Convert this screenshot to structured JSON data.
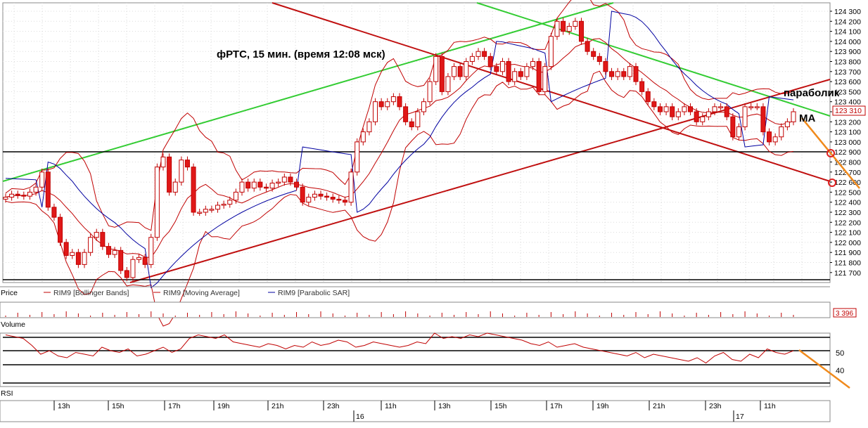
{
  "chart_data": {
    "type": "candlestick",
    "title": "фРТС,  15 мин.  (время 12:08 мск)",
    "price_axis": {
      "ylim": [
        121600,
        124350
      ],
      "ticks": [
        "124 300",
        "124 200",
        "124 100",
        "124 000",
        "123 900",
        "123 800",
        "123 700",
        "123 600",
        "123 500",
        "123 400",
        "123 300",
        "123 200",
        "123 100",
        "123 000",
        "122 900",
        "122 800",
        "122 700",
        "122 600",
        "122 500",
        "122 400",
        "122 300",
        "122 200",
        "122 100",
        "122 000",
        "121 900",
        "121 800",
        "121 700"
      ],
      "last_price_label": "123 310"
    },
    "candles_closes": [
      122450,
      122480,
      122470,
      122460,
      122500,
      122550,
      122700,
      122350,
      122250,
      122000,
      121870,
      121900,
      121780,
      121900,
      122050,
      122100,
      121960,
      121880,
      121920,
      121720,
      121650,
      121830,
      121850,
      121780,
      122050,
      122750,
      122850,
      122500,
      122600,
      122820,
      122750,
      122300,
      122300,
      122330,
      122330,
      122370,
      122380,
      122420,
      122500,
      122600,
      122540,
      122600,
      122550,
      122540,
      122590,
      122600,
      122650,
      122600,
      122550,
      122400,
      122450,
      122480,
      122460,
      122450,
      122430,
      122420,
      122400,
      122700,
      123000,
      123100,
      123200,
      123400,
      123350,
      123400,
      123450,
      123350,
      123200,
      123150,
      123300,
      123400,
      123600,
      123850,
      123500,
      123650,
      123750,
      123650,
      123800,
      123850,
      123900,
      123850,
      123750,
      123700,
      123800,
      123600,
      123700,
      123650,
      123750,
      123800,
      123500,
      123750,
      124050,
      124200,
      124100,
      124150,
      124200,
      124000,
      123900,
      123850,
      123800,
      123700,
      123650,
      123700,
      123650,
      123750,
      123600,
      123500,
      123400,
      123350,
      123300,
      123350,
      123250,
      123300,
      123350,
      123300,
      123200,
      123250,
      123300,
      123350,
      123350,
      123250,
      123050,
      123150,
      123350,
      123350,
      123350,
      123100,
      123000,
      123050,
      123150,
      123200,
      123300
    ],
    "indicators": [
      {
        "name": "RIM9 [Bollinger Bands]",
        "color": "#c00000"
      },
      {
        "name": "RIM9 [Moving Average]",
        "color": "#c00000"
      },
      {
        "name": "RIM9 [Parabolic SAR]",
        "color": "#0000a0"
      }
    ],
    "panel_labels": {
      "price": "Price",
      "volume": "Volume",
      "rsi": "RSI"
    },
    "volume_last_label": "3 396",
    "rsi_axis": {
      "ticks": [
        "50",
        "40"
      ]
    },
    "rsi_values": [
      59,
      58,
      57,
      53,
      48,
      50,
      47,
      46,
      49,
      48,
      47,
      52,
      50,
      49,
      51,
      47,
      48,
      50,
      52,
      49,
      51,
      57,
      59,
      58,
      57,
      59,
      55,
      54,
      53,
      52,
      54,
      53,
      51,
      53,
      52,
      55,
      53,
      54,
      56,
      55,
      52,
      53,
      55,
      54,
      53,
      52,
      53,
      55,
      54,
      60,
      57,
      58,
      57,
      59,
      58,
      60,
      59,
      58,
      57,
      56,
      54,
      53,
      55,
      52,
      53,
      54,
      52,
      51,
      50,
      49,
      48,
      47,
      49,
      46,
      48,
      47,
      46,
      45,
      44,
      46,
      43,
      47,
      49,
      45,
      44,
      48,
      46,
      51,
      49,
      48,
      50
    ],
    "x_axis": {
      "hour_labels": [
        "13h",
        "15h",
        "17h",
        "19h",
        "21h",
        "23h",
        "11h",
        "13h",
        "15h",
        "17h",
        "19h",
        "21h",
        "23h",
        "11h"
      ],
      "day_labels": [
        "16",
        "17"
      ]
    },
    "annotations": {
      "parabolic": "параболик",
      "ma": "MA"
    }
  }
}
